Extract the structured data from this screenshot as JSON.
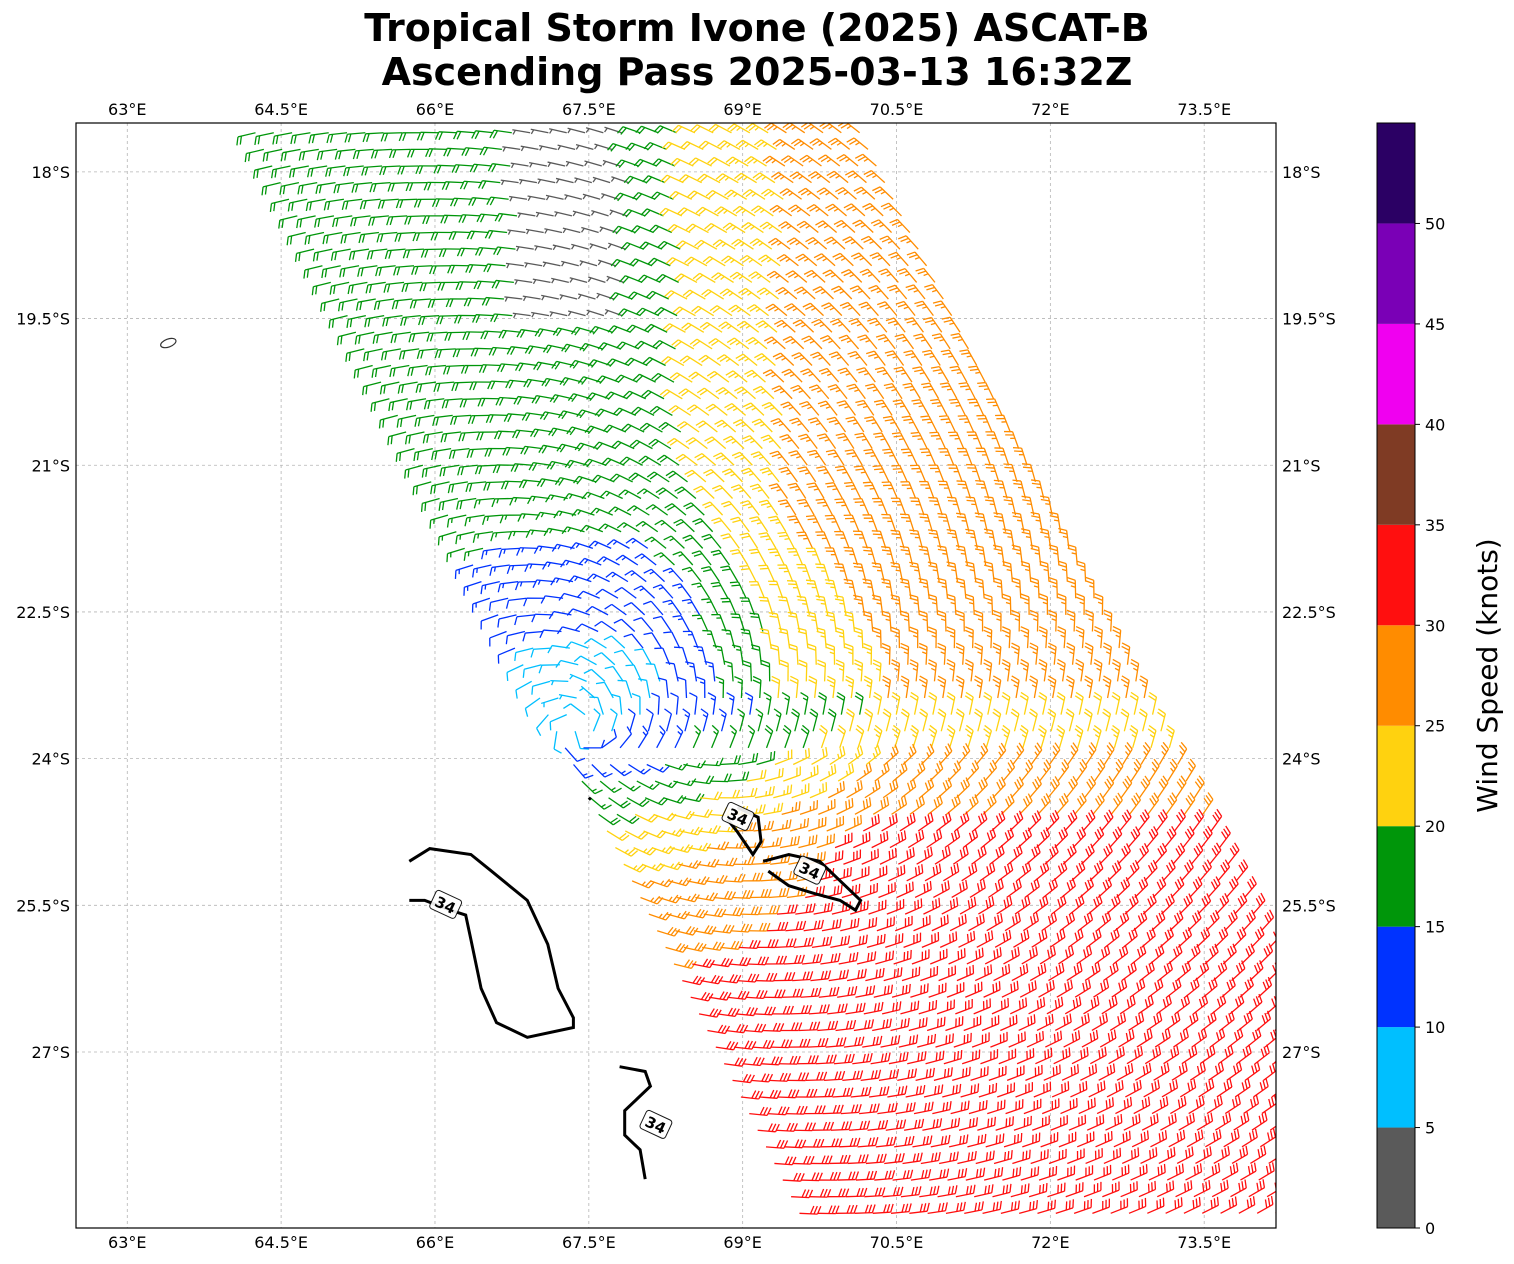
{
  "title": {
    "line1": "Tropical Storm Ivone (2025) ASCAT-B",
    "line2": "Ascending Pass 2025-03-13 16:32Z"
  },
  "map": {
    "lon_range": [
      62.5,
      74.2
    ],
    "lat_range": [
      -28.8,
      -17.5
    ],
    "lon_ticks": [
      {
        "value": 63.0,
        "label": "63°E"
      },
      {
        "value": 64.5,
        "label": "64.5°E"
      },
      {
        "value": 66.0,
        "label": "66°E"
      },
      {
        "value": 67.5,
        "label": "67.5°E"
      },
      {
        "value": 69.0,
        "label": "69°E"
      },
      {
        "value": 70.5,
        "label": "70.5°E"
      },
      {
        "value": 72.0,
        "label": "72°E"
      },
      {
        "value": 73.5,
        "label": "73.5°E"
      }
    ],
    "lat_ticks": [
      {
        "value": -18.0,
        "label": "18°S"
      },
      {
        "value": -19.5,
        "label": "19.5°S"
      },
      {
        "value": -21.0,
        "label": "21°S"
      },
      {
        "value": -22.5,
        "label": "22.5°S"
      },
      {
        "value": -24.0,
        "label": "24°S"
      },
      {
        "value": -25.5,
        "label": "25.5°S"
      },
      {
        "value": -27.0,
        "label": "27°S"
      }
    ],
    "gridlines": true,
    "storm_center": {
      "lon": 67.4,
      "lat": -23.7
    },
    "island": {
      "lon": 63.4,
      "lat": -19.75
    }
  },
  "colorbar": {
    "label": "Wind Speed (knots)",
    "bins": [
      {
        "from": 0,
        "to": 5,
        "color": "#5a5a5a"
      },
      {
        "from": 5,
        "to": 10,
        "color": "#00bfff"
      },
      {
        "from": 10,
        "to": 15,
        "color": "#0033ff"
      },
      {
        "from": 15,
        "to": 20,
        "color": "#00960a"
      },
      {
        "from": 20,
        "to": 25,
        "color": "#ffd20f"
      },
      {
        "from": 25,
        "to": 30,
        "color": "#ff8c00"
      },
      {
        "from": 30,
        "to": 35,
        "color": "#ff0f0f"
      },
      {
        "from": 35,
        "to": 40,
        "color": "#7f3b24"
      },
      {
        "from": 40,
        "to": 45,
        "color": "#f000f0"
      },
      {
        "from": 45,
        "to": 50,
        "color": "#7a00b6"
      },
      {
        "from": 50,
        "to": 55,
        "color": "#2b0064"
      }
    ],
    "tick_labels": [
      "0",
      "5",
      "10",
      "15",
      "20",
      "25",
      "30",
      "35",
      "40",
      "45",
      "50"
    ]
  },
  "contours": {
    "level_label": "34",
    "level": 34
  }
}
